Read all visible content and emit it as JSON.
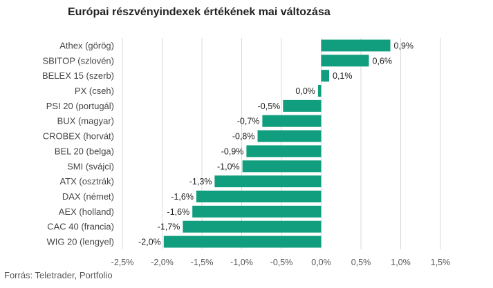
{
  "title": "Európai részvényindexek értékének mai változása",
  "source": "Forrás: Teletrader, Portfolio",
  "chart_data": {
    "type": "bar",
    "orientation": "horizontal",
    "title": "Európai részvényindexek értékének mai változása",
    "categories": [
      "Athex (görög)",
      "SBITOP (szlovén)",
      "BELEX 15 (szerb)",
      "PX (cseh)",
      "PSI 20 (portugál)",
      "BUX (magyar)",
      "CROBEX (horvát)",
      "BEL 20 (belga)",
      "SMI (svájci)",
      "ATX (osztrák)",
      "DAX (német)",
      "AEX (holland)",
      "CAC 40 (francia)",
      "WIG 20 (lengyel)"
    ],
    "values": [
      0.87,
      0.6,
      0.1,
      -0.04,
      -0.48,
      -0.74,
      -0.8,
      -0.94,
      -0.99,
      -1.34,
      -1.57,
      -1.62,
      -1.74,
      -1.98
    ],
    "data_labels": [
      "0,9%",
      "0,6%",
      "0,1%",
      "0,0%",
      "-0,5%",
      "-0,7%",
      "-0,8%",
      "-0,9%",
      "-1,0%",
      "-1,3%",
      "-1,6%",
      "-1,6%",
      "-1,7%",
      "-2,0%"
    ],
    "xlim": [
      -2.5,
      1.5
    ],
    "x_ticks": [
      -2.5,
      -2.0,
      -1.5,
      -1.0,
      -0.5,
      0.0,
      0.5,
      1.0,
      1.5
    ],
    "x_tick_labels": [
      "-2,5%",
      "-2,0%",
      "-1,5%",
      "-1,0%",
      "-0,5%",
      "0,0%",
      "0,5%",
      "1,0%",
      "1,5%"
    ],
    "grid": "vertical",
    "legend": "none",
    "bar_color": "#109e7e",
    "grid_color": "#d9d9d9"
  }
}
